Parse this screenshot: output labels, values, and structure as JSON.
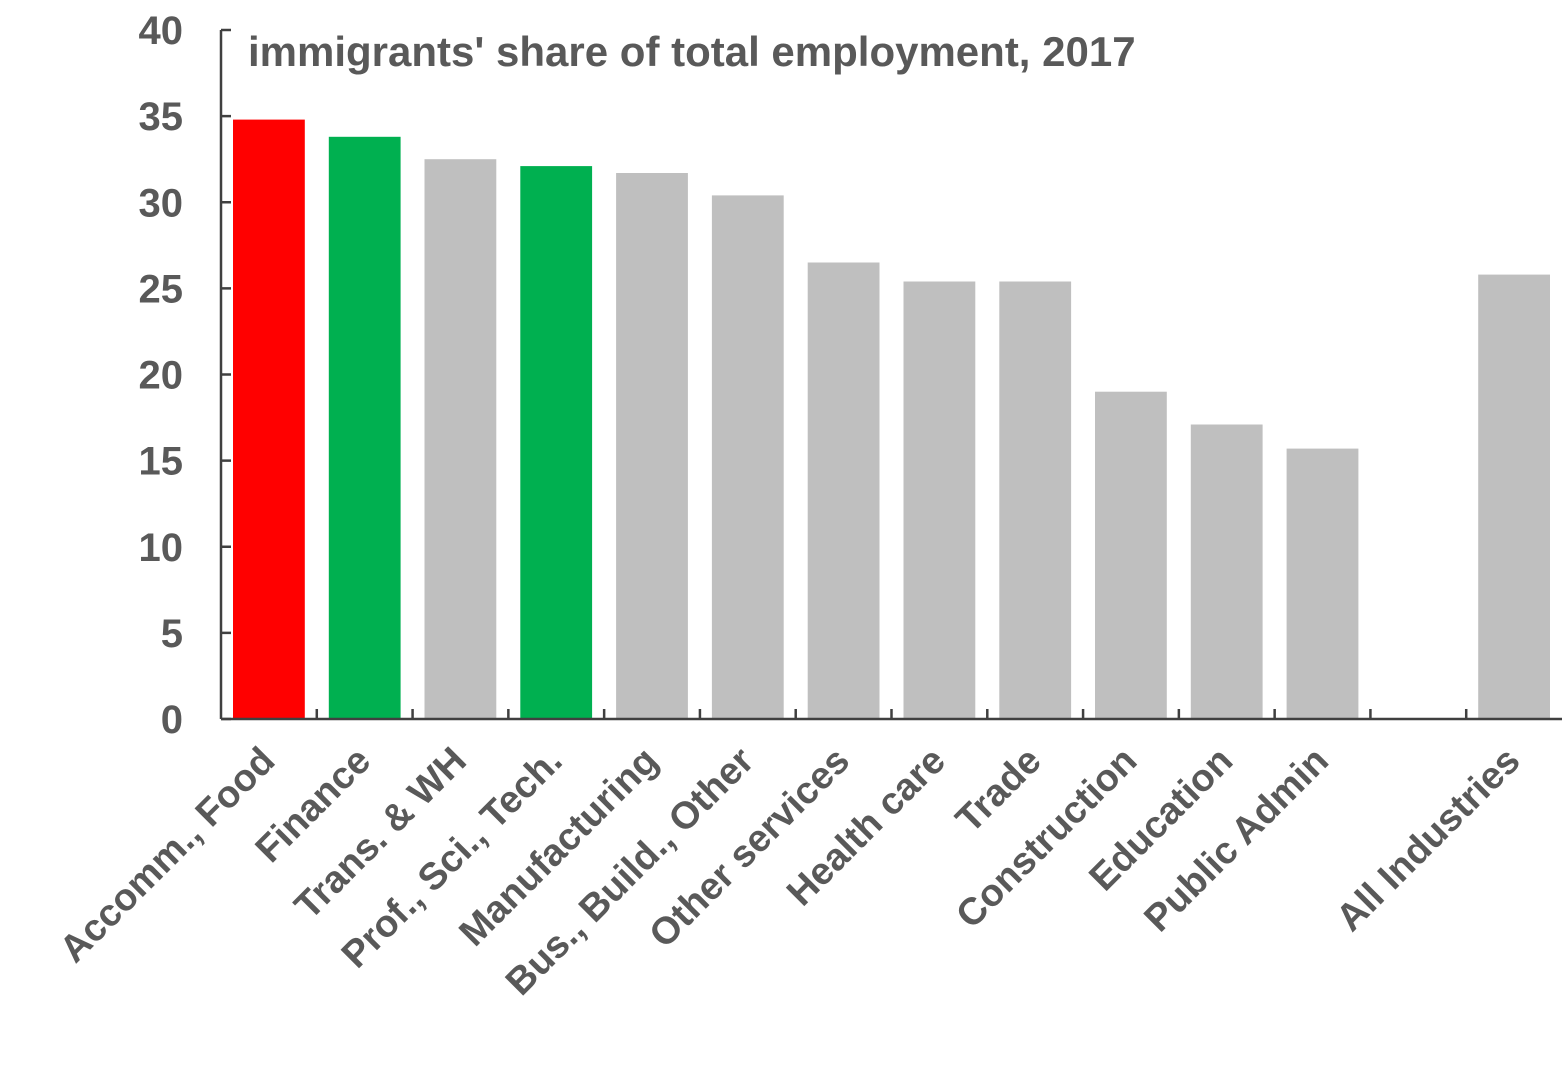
{
  "chart_data": {
    "type": "bar",
    "title": "immigrants' share of total employment, 2017",
    "xlabel": "",
    "ylabel": "",
    "ylim": [
      0,
      40
    ],
    "yticks": [
      0,
      5,
      10,
      15,
      20,
      25,
      30,
      35,
      40
    ],
    "grid": false,
    "legend": "none",
    "categories": [
      "Accomm., Food",
      "Finance",
      "Trans. & WH",
      "Prof., Sci., Tech.",
      "Manufacturing",
      "Bus., Build., Other",
      "Other services",
      "Health care",
      "Trade",
      "Construction",
      "Education",
      "Public Admin",
      "",
      "All Industries"
    ],
    "values": [
      34.8,
      33.8,
      32.5,
      32.1,
      31.7,
      30.4,
      26.5,
      25.4,
      25.4,
      19.0,
      17.1,
      15.7,
      null,
      25.8
    ],
    "colors": [
      "#ff0000",
      "#00b050",
      "#bfbfbf",
      "#00b050",
      "#bfbfbf",
      "#bfbfbf",
      "#bfbfbf",
      "#bfbfbf",
      "#bfbfbf",
      "#bfbfbf",
      "#bfbfbf",
      "#bfbfbf",
      "#bfbfbf",
      "#bfbfbf"
    ]
  }
}
